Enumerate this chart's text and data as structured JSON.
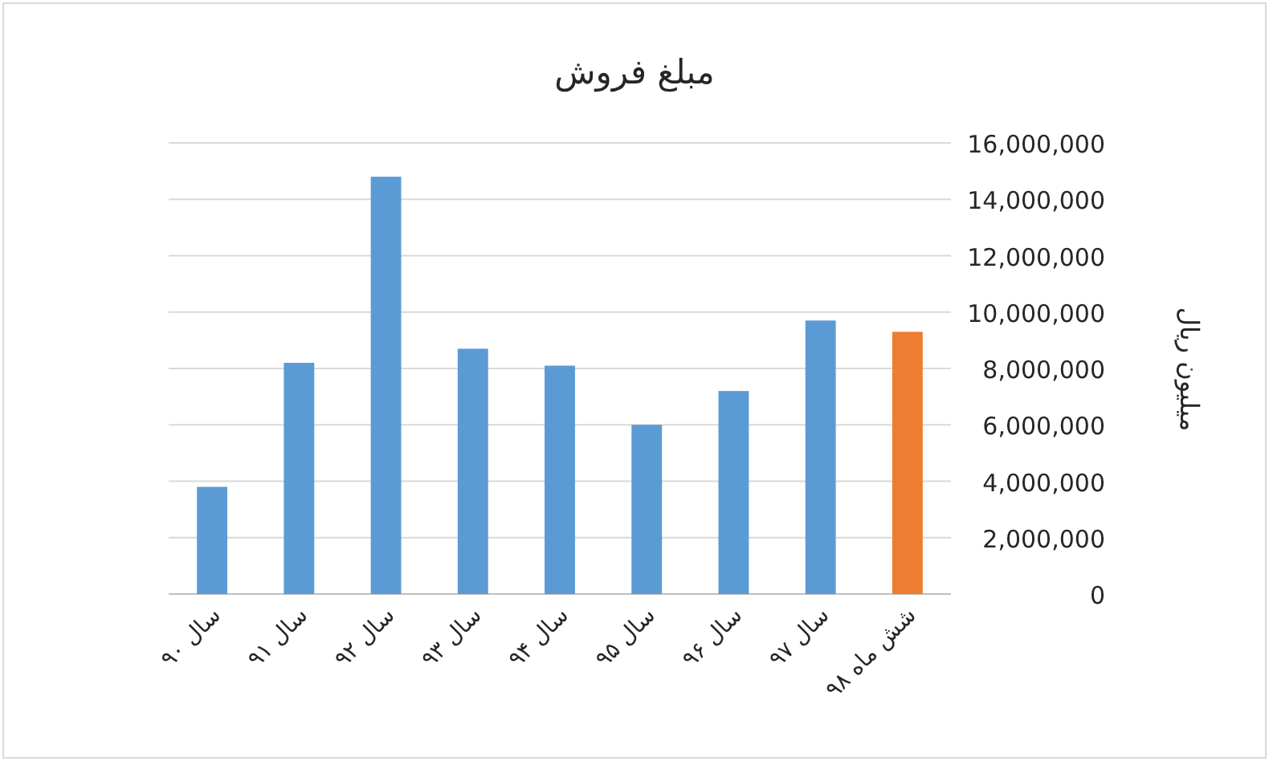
{
  "chart_data": {
    "type": "bar",
    "title": "مبلغ فروش",
    "ylabel": "میلیون ریال",
    "categories": [
      "سال ۹۰",
      "سال ۹۱",
      "سال ۹۲",
      "سال ۹۳",
      "سال ۹۴",
      "سال ۹۵",
      "سال ۹۶",
      "سال ۹۷",
      "شش ماه ۹۸"
    ],
    "values": [
      3800000,
      8200000,
      14800000,
      8700000,
      8100000,
      6000000,
      7200000,
      9700000,
      9300000
    ],
    "colors": [
      "#5b9bd5",
      "#5b9bd5",
      "#5b9bd5",
      "#5b9bd5",
      "#5b9bd5",
      "#5b9bd5",
      "#5b9bd5",
      "#5b9bd5",
      "#ed7d31"
    ],
    "ylim": [
      0,
      16000000
    ],
    "yticks": [
      {
        "value": 0,
        "label": "0"
      },
      {
        "value": 2000000,
        "label": "2,000,000"
      },
      {
        "value": 4000000,
        "label": "4,000,000"
      },
      {
        "value": 6000000,
        "label": "6,000,000"
      },
      {
        "value": 8000000,
        "label": "8,000,000"
      },
      {
        "value": 10000000,
        "label": "10,000,000"
      },
      {
        "value": 12000000,
        "label": "12,000,000"
      },
      {
        "value": 14000000,
        "label": "14,000,000"
      },
      {
        "value": 16000000,
        "label": "16,000,000"
      }
    ],
    "grid": "y"
  }
}
